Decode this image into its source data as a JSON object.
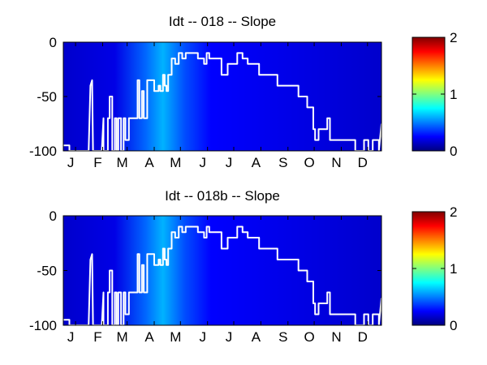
{
  "chart_data": [
    {
      "type": "heatmap",
      "title": "Idt -- 018 -- Slope",
      "xlabel": "",
      "ylabel": "",
      "x_tick_labels": [
        "J",
        "F",
        "M",
        "A",
        "M",
        "J",
        "J",
        "A",
        "S",
        "O",
        "N",
        "D"
      ],
      "x_range_days": [
        1,
        365
      ],
      "y_tick_labels": [
        "0",
        "-50",
        "-100"
      ],
      "ylim": [
        -100,
        0
      ],
      "colorbar": {
        "ticks": [
          "0",
          "1",
          "2"
        ],
        "range": [
          0,
          2
        ],
        "colormap": "jet"
      },
      "heatmap_value_profile": {
        "note_days": [
          1,
          60,
          95,
          115,
          140,
          170,
          365
        ],
        "values": [
          0.15,
          0.2,
          0.45,
          0.6,
          0.4,
          0.25,
          0.15
        ]
      },
      "line_series": {
        "color": "#ffffff",
        "days": [
          1,
          8,
          8,
          30,
          32,
          34,
          35,
          45,
          47,
          47,
          52,
          52,
          54,
          54,
          57,
          57,
          60,
          60,
          62,
          62,
          64,
          64,
          67,
          67,
          70,
          70,
          72,
          72,
          76,
          76,
          86,
          86,
          88,
          88,
          91,
          91,
          93,
          93,
          97,
          97,
          105,
          105,
          110,
          110,
          112,
          112,
          115,
          115,
          117,
          117,
          119,
          119,
          121,
          121,
          125,
          125,
          129,
          129,
          133,
          133,
          137,
          137,
          141,
          141,
          155,
          155,
          162,
          162,
          165,
          165,
          168,
          168,
          182,
          182,
          189,
          189,
          200,
          200,
          206,
          206,
          212,
          212,
          225,
          225,
          246,
          246,
          270,
          270,
          280,
          280,
          287,
          287,
          289,
          289,
          293,
          293,
          303,
          303,
          306,
          306,
          335,
          335,
          345,
          345,
          350,
          350,
          355,
          355,
          362,
          362,
          365
        ],
        "depths": [
          -95,
          -95,
          -100,
          -100,
          -40,
          -35,
          -100,
          -100,
          -70,
          -100,
          -100,
          -70,
          -70,
          -50,
          -50,
          -100,
          -100,
          -70,
          -70,
          -100,
          -100,
          -70,
          -70,
          -100,
          -100,
          -70,
          -70,
          -90,
          -90,
          -70,
          -70,
          -35,
          -35,
          -70,
          -70,
          -45,
          -45,
          -70,
          -70,
          -35,
          -35,
          -45,
          -45,
          -40,
          -40,
          -45,
          -45,
          -30,
          -30,
          -40,
          -40,
          -45,
          -45,
          -30,
          -30,
          -15,
          -15,
          -20,
          -20,
          -10,
          -10,
          -15,
          -15,
          -10,
          -10,
          -15,
          -15,
          -20,
          -20,
          -10,
          -10,
          -15,
          -15,
          -30,
          -30,
          -20,
          -20,
          -10,
          -10,
          -15,
          -15,
          -20,
          -20,
          -30,
          -30,
          -40,
          -40,
          -50,
          -50,
          -60,
          -60,
          -80,
          -80,
          -90,
          -90,
          -80,
          -80,
          -70,
          -70,
          -90,
          -90,
          -100,
          -100,
          -90,
          -90,
          -100,
          -100,
          -90,
          -90,
          -100,
          -75
        ]
      }
    },
    {
      "type": "heatmap",
      "title": "Idt -- 018b -- Slope",
      "xlabel": "",
      "ylabel": "",
      "x_tick_labels": [
        "J",
        "F",
        "M",
        "A",
        "M",
        "J",
        "J",
        "A",
        "S",
        "O",
        "N",
        "D"
      ],
      "x_range_days": [
        1,
        365
      ],
      "y_tick_labels": [
        "0",
        "-50",
        "-100"
      ],
      "ylim": [
        -100,
        0
      ],
      "colorbar": {
        "ticks": [
          "0",
          "1",
          "2"
        ],
        "range": [
          0,
          2
        ],
        "colormap": "jet"
      },
      "heatmap_value_profile": {
        "note_days": [
          1,
          60,
          95,
          115,
          140,
          170,
          365
        ],
        "values": [
          0.15,
          0.2,
          0.45,
          0.6,
          0.4,
          0.25,
          0.15
        ]
      },
      "line_series": {
        "color": "#ffffff",
        "days": [
          1,
          8,
          8,
          30,
          32,
          34,
          35,
          45,
          47,
          47,
          52,
          52,
          54,
          54,
          57,
          57,
          60,
          60,
          62,
          62,
          64,
          64,
          67,
          67,
          70,
          70,
          72,
          72,
          76,
          76,
          86,
          86,
          88,
          88,
          91,
          91,
          93,
          93,
          97,
          97,
          105,
          105,
          110,
          110,
          112,
          112,
          115,
          115,
          117,
          117,
          119,
          119,
          121,
          121,
          125,
          125,
          129,
          129,
          133,
          133,
          137,
          137,
          141,
          141,
          155,
          155,
          162,
          162,
          165,
          165,
          168,
          168,
          182,
          182,
          189,
          189,
          200,
          200,
          206,
          206,
          212,
          212,
          225,
          225,
          246,
          246,
          270,
          270,
          280,
          280,
          287,
          287,
          289,
          289,
          293,
          293,
          303,
          303,
          306,
          306,
          335,
          335,
          345,
          345,
          350,
          350,
          355,
          355,
          362,
          362,
          365
        ],
        "depths": [
          -95,
          -95,
          -100,
          -100,
          -40,
          -35,
          -100,
          -100,
          -70,
          -100,
          -100,
          -70,
          -70,
          -50,
          -50,
          -100,
          -100,
          -70,
          -70,
          -100,
          -100,
          -70,
          -70,
          -100,
          -100,
          -70,
          -70,
          -90,
          -90,
          -70,
          -70,
          -35,
          -35,
          -70,
          -70,
          -45,
          -45,
          -70,
          -70,
          -35,
          -35,
          -45,
          -45,
          -40,
          -40,
          -45,
          -45,
          -30,
          -30,
          -40,
          -40,
          -45,
          -45,
          -30,
          -30,
          -15,
          -15,
          -20,
          -20,
          -10,
          -10,
          -15,
          -15,
          -10,
          -10,
          -15,
          -15,
          -20,
          -20,
          -10,
          -10,
          -15,
          -15,
          -30,
          -30,
          -20,
          -20,
          -10,
          -10,
          -15,
          -15,
          -20,
          -20,
          -30,
          -30,
          -40,
          -40,
          -50,
          -50,
          -60,
          -60,
          -80,
          -80,
          -90,
          -90,
          -80,
          -80,
          -70,
          -70,
          -90,
          -90,
          -100,
          -100,
          -90,
          -90,
          -100,
          -100,
          -90,
          -90,
          -100,
          -75
        ]
      }
    }
  ]
}
